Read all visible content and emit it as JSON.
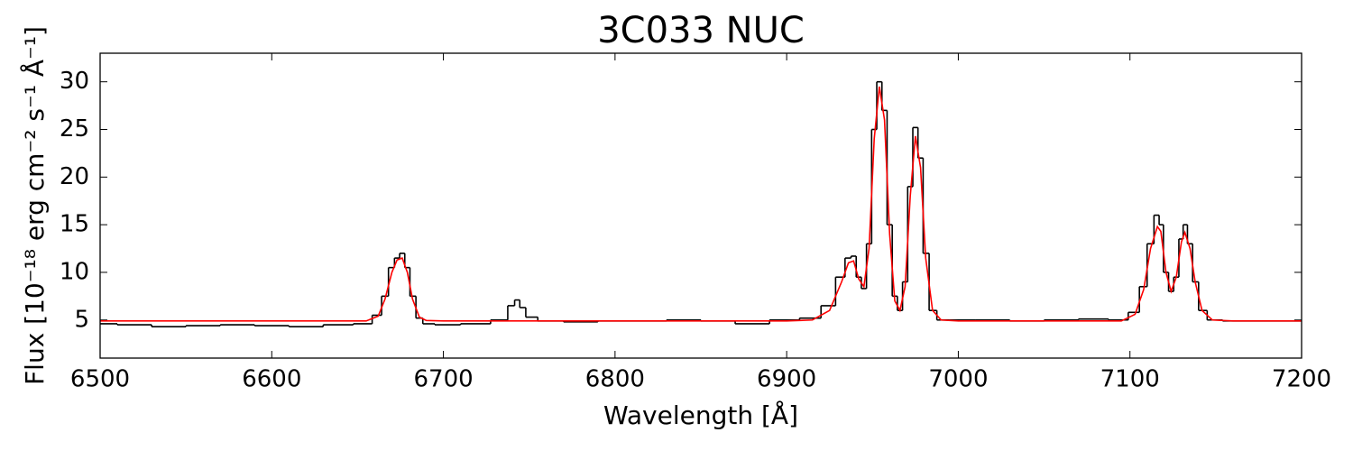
{
  "chart_data": {
    "type": "line",
    "title": "3C033 NUC",
    "xlabel": "Wavelength [Å]",
    "ylabel": "Flux [10⁻¹⁸ erg cm⁻² s⁻¹ Å⁻¹]",
    "x": [
      6500,
      6520,
      6540,
      6560,
      6580,
      6600,
      6620,
      6640,
      6655,
      6662,
      6666,
      6670,
      6673,
      6676,
      6679,
      6682,
      6686,
      6690,
      6700,
      6720,
      6735,
      6740,
      6743,
      6746,
      6750,
      6760,
      6780,
      6800,
      6820,
      6840,
      6860,
      6880,
      6900,
      6915,
      6925,
      6932,
      6936,
      6939,
      6942,
      6945,
      6948,
      6951,
      6954,
      6957,
      6960,
      6963,
      6966,
      6969,
      6972,
      6975,
      6978,
      6981,
      6985,
      6990,
      7000,
      7020,
      7040,
      7060,
      7080,
      7095,
      7103,
      7108,
      7112,
      7116,
      7118,
      7121,
      7124,
      7127,
      7130,
      7132,
      7135,
      7138,
      7142,
      7148,
      7160,
      7180,
      7200
    ],
    "series": [
      {
        "color": "#000000",
        "drawstyle": "steps-mid",
        "values": [
          4.6,
          4.5,
          4.3,
          4.4,
          4.5,
          4.4,
          4.3,
          4.5,
          4.6,
          5.5,
          7.5,
          10.5,
          11.5,
          12.0,
          10.5,
          7.5,
          5.2,
          4.6,
          4.5,
          4.6,
          5.0,
          6.5,
          7.1,
          6.3,
          5.3,
          4.9,
          4.8,
          4.9,
          4.9,
          5.0,
          4.9,
          4.6,
          5.0,
          5.2,
          6.5,
          9.5,
          11.5,
          11.7,
          9.5,
          8.3,
          13,
          25,
          30,
          27,
          15,
          7.5,
          6.0,
          9,
          19,
          25.2,
          22,
          12,
          6.0,
          5.0,
          5.0,
          5.0,
          4.9,
          5.0,
          5.1,
          5.0,
          5.8,
          8.5,
          13,
          16,
          15,
          10,
          8.0,
          9.5,
          13.5,
          15,
          13,
          9,
          6.0,
          5.0,
          4.9,
          4.9,
          4.9
        ]
      },
      {
        "color": "#ff0000",
        "drawstyle": "default",
        "values": [
          4.9,
          4.9,
          4.9,
          4.9,
          4.9,
          4.9,
          4.9,
          4.9,
          4.9,
          5.4,
          7.2,
          10,
          11.3,
          11.5,
          10,
          7.2,
          5.3,
          4.95,
          4.9,
          4.9,
          4.9,
          4.9,
          4.9,
          4.9,
          4.9,
          4.9,
          4.9,
          4.9,
          4.9,
          4.9,
          4.9,
          4.9,
          4.9,
          5.0,
          6.0,
          9.0,
          11.0,
          11.2,
          9.3,
          8.5,
          12.5,
          24,
          29.5,
          26,
          14,
          7.0,
          6.0,
          8.5,
          18,
          24.3,
          21,
          11.5,
          6.0,
          5.0,
          4.9,
          4.9,
          4.9,
          4.9,
          4.9,
          4.9,
          5.6,
          8.2,
          12.5,
          14.8,
          14.3,
          10,
          8.0,
          9.5,
          13.2,
          14.2,
          12.5,
          9,
          6.0,
          5.0,
          4.9,
          4.9,
          4.9
        ]
      }
    ],
    "xlim": [
      6500,
      7200
    ],
    "xticks": [
      6500,
      6600,
      6700,
      6800,
      6900,
      7000,
      7100,
      7200
    ],
    "ylim": [
      1,
      33
    ],
    "yticks": [
      5,
      10,
      15,
      20,
      25,
      30
    ],
    "grid": false
  }
}
